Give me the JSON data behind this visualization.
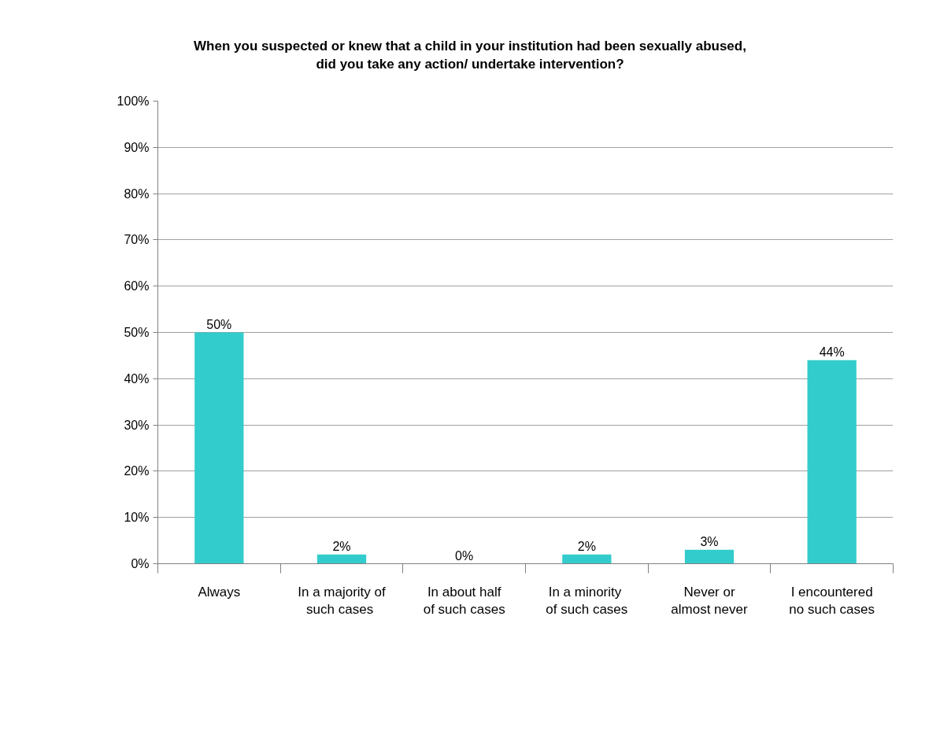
{
  "chart_data": {
    "type": "bar",
    "title": "When you suspected or knew that a child in your institution had been sexually abused,\ndid you take any action/ undertake intervention?",
    "categories": [
      "Always",
      "In a majority of\nsuch  cases",
      "In about half\nof such cases",
      "In  a minority\nof such cases",
      "Never or\nalmost never",
      "I encountered\nno such cases"
    ],
    "values": [
      50,
      2,
      0,
      2,
      3,
      44
    ],
    "value_labels": [
      "50%",
      "2%",
      "0%",
      "2%",
      "3%",
      "44%"
    ],
    "color": "#33cccc",
    "ylim": [
      0,
      100
    ],
    "yticks": [
      {
        "value": 0,
        "label": "0%"
      },
      {
        "value": 10,
        "label": "10%"
      },
      {
        "value": 20,
        "label": "20%"
      },
      {
        "value": 30,
        "label": "30%"
      },
      {
        "value": 40,
        "label": "40%"
      },
      {
        "value": 50,
        "label": "50%"
      },
      {
        "value": 60,
        "label": "60%"
      },
      {
        "value": 70,
        "label": "70%"
      },
      {
        "value": 80,
        "label": "80%"
      },
      {
        "value": 90,
        "label": "90%"
      },
      {
        "value": 100,
        "label": "100%"
      }
    ],
    "grid": "y"
  }
}
